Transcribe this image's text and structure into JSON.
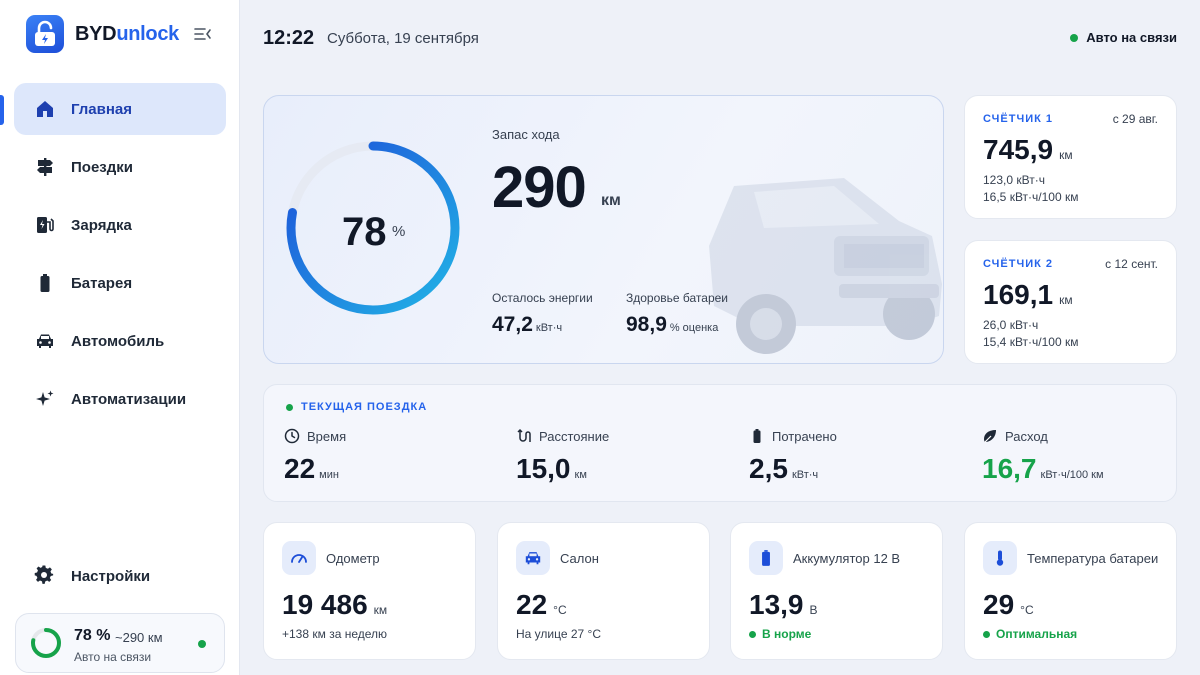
{
  "app": {
    "brand_part1": "BYD",
    "brand_part2": "unlock"
  },
  "sidebar": {
    "items": [
      {
        "label": "Главная",
        "icon": "home-icon",
        "active": true
      },
      {
        "label": "Поездки",
        "icon": "signpost-icon"
      },
      {
        "label": "Зарядка",
        "icon": "charging-station-icon"
      },
      {
        "label": "Батарея",
        "icon": "battery-icon"
      },
      {
        "label": "Автомобиль",
        "icon": "car-icon"
      },
      {
        "label": "Автоматизации",
        "icon": "sparkles-icon"
      }
    ],
    "settings_label": "Настройки",
    "mini": {
      "percent": "78 %",
      "range": "~290 км",
      "status": "Авто на связи",
      "charge_fraction": 0.78
    }
  },
  "header": {
    "time": "12:22",
    "date": "Суббота, 19 сентября",
    "connection": "Авто на связи"
  },
  "hero": {
    "charge_value": "78",
    "charge_unit": "%",
    "charge_fraction": 0.78,
    "range_label": "Запас хода",
    "range_value": "290",
    "range_unit": "км",
    "energy_label": "Осталось энергии",
    "energy_value": "47,2",
    "energy_unit": "кВт·ч",
    "health_label": "Здоровье батареи",
    "health_value": "98,9",
    "health_unit": "%",
    "health_note": "оценка"
  },
  "counters": [
    {
      "title": "СЧЁТЧИК 1",
      "since": "с 29 авг.",
      "value": "745,9",
      "unit": "км",
      "energy": "123,0 кВт·ч",
      "consumption": "16,5 кВт·ч/100 км"
    },
    {
      "title": "СЧЁТЧИК 2",
      "since": "с 12 сент.",
      "value": "169,1",
      "unit": "км",
      "energy": "26,0 кВт·ч",
      "consumption": "15,4 кВт·ч/100 км"
    }
  ],
  "trip": {
    "title": "ТЕКУЩАЯ ПОЕЗДКА",
    "items": [
      {
        "label": "Время",
        "value": "22",
        "unit": "мин",
        "icon": "clock-icon"
      },
      {
        "label": "Расстояние",
        "value": "15,0",
        "unit": "км",
        "icon": "route-icon"
      },
      {
        "label": "Потрачено",
        "value": "2,5",
        "unit": "кВт·ч",
        "icon": "battery-icon"
      },
      {
        "label": "Расход",
        "value": "16,7",
        "unit": "кВт·ч/100 км",
        "icon": "leaf-icon"
      }
    ]
  },
  "stats": [
    {
      "label": "Одометр",
      "value": "19 486",
      "unit": "км",
      "note": "+138 км за неделю",
      "icon": "speedometer-icon"
    },
    {
      "label": "Салон",
      "value": "22",
      "unit": "°C",
      "note": "На улице 27 °C",
      "icon": "car-icon"
    },
    {
      "label": "Аккумулятор 12 В",
      "value": "13,9",
      "unit": "В",
      "note": "В норме",
      "icon": "battery-icon"
    },
    {
      "label": "Температура батареи",
      "value": "29",
      "unit": "°C",
      "note": "Оптимальная",
      "icon": "thermometer-icon"
    }
  ],
  "colors": {
    "accent": "#2563eb",
    "ok": "#16a34a",
    "active_bg": "#dde7fb"
  }
}
